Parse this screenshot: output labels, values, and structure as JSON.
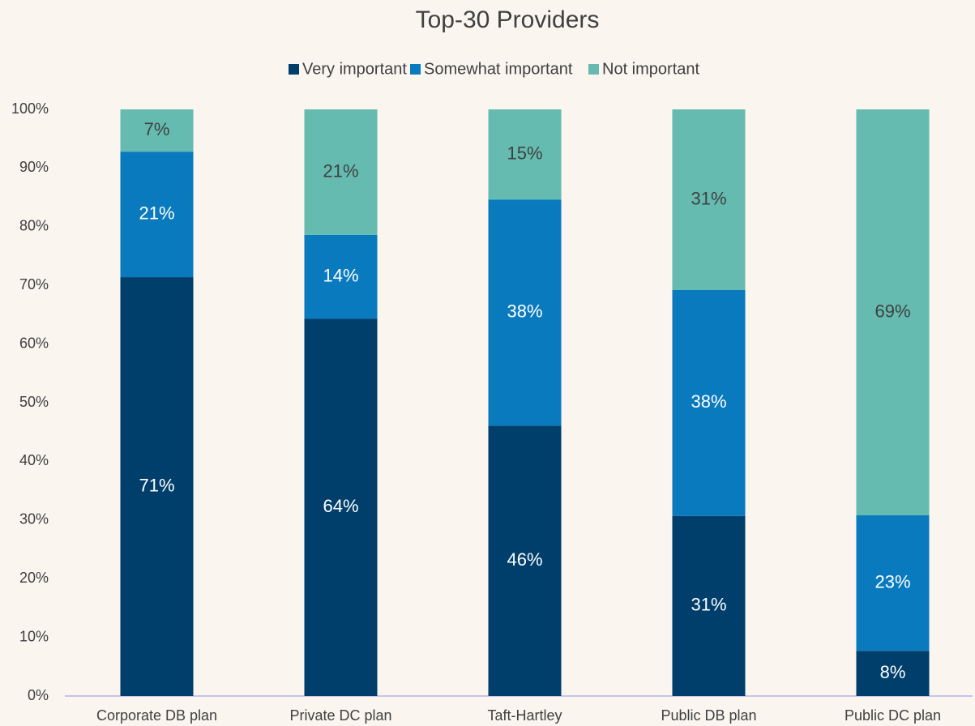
{
  "chart_data": {
    "type": "stacked_bar",
    "title": "Top-30 Providers",
    "categories": [
      "Corporate DB plan",
      "Private DC plan",
      "Taft-Hartley",
      "Public DB plan",
      "Public DC plan"
    ],
    "series": [
      {
        "name": "Very important",
        "color": "#003f6b",
        "label_color": "#ffffff",
        "values": [
          71.4,
          64.3,
          46.1,
          30.7,
          7.7
        ],
        "value_labels": [
          "71%",
          "64%",
          "46%",
          "31%",
          "8%"
        ]
      },
      {
        "name": "Somewhat important",
        "color": "#0a7abf",
        "label_color": "#ffffff",
        "values": [
          21.4,
          14.3,
          38.5,
          38.5,
          23.1
        ],
        "value_labels": [
          "21%",
          "14%",
          "38%",
          "38%",
          "23%"
        ]
      },
      {
        "name": "Not important",
        "color": "#65bbb0",
        "label_color": "#404040",
        "values": [
          7.2,
          21.4,
          15.4,
          30.8,
          69.2
        ],
        "value_labels": [
          "7%",
          "21%",
          "15%",
          "31%",
          "69%"
        ]
      }
    ],
    "ylim": [
      0,
      100
    ],
    "yticks": [
      {
        "value": 0,
        "label": "0%"
      },
      {
        "value": 10,
        "label": "10%"
      },
      {
        "value": 20,
        "label": "20%"
      },
      {
        "value": 30,
        "label": "30%"
      },
      {
        "value": 40,
        "label": "40%"
      },
      {
        "value": 50,
        "label": "50%"
      },
      {
        "value": 60,
        "label": "60%"
      },
      {
        "value": 70,
        "label": "70%"
      },
      {
        "value": 80,
        "label": "80%"
      },
      {
        "value": 90,
        "label": "90%"
      },
      {
        "value": 100,
        "label": "100%"
      }
    ],
    "legend": "top",
    "grid": false
  }
}
